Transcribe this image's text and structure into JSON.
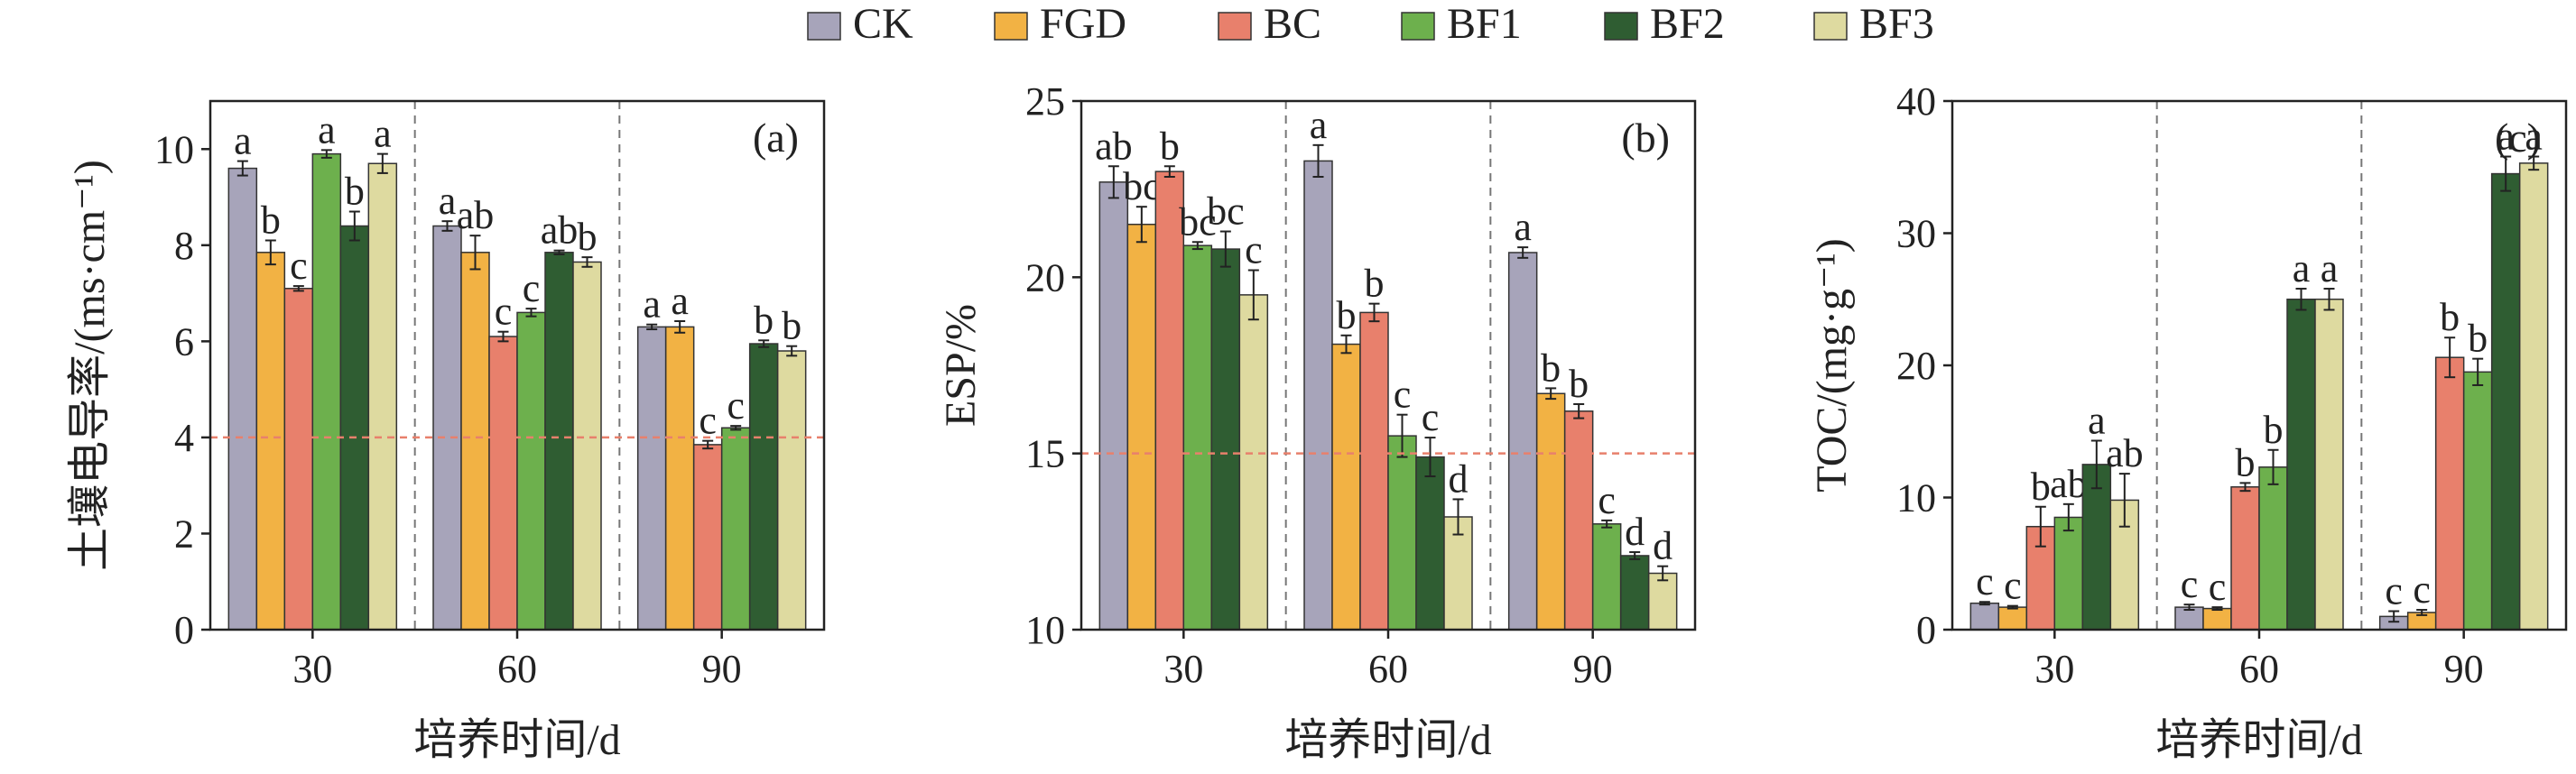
{
  "legend": [
    "CK",
    "FGD",
    "BC",
    "BF1",
    "BF2",
    "BF3"
  ],
  "colors": {
    "CK": "#a7a4ba",
    "FGD": "#f2b244",
    "BC": "#e8806c",
    "BF1": "#6db04d",
    "BF2": "#2f5d32",
    "BF3": "#dedaa0",
    "threshold": "#e8806c",
    "separator": "#777777"
  },
  "chart_data": [
    {
      "type": "bar",
      "panel_label": "(a)",
      "title": "",
      "xlabel": "培养时间/d",
      "ylabel": "土壤电导率/(ms·cm⁻¹)",
      "categories": [
        "30",
        "60",
        "90"
      ],
      "ylim": [
        0,
        11
      ],
      "yticks": [
        0,
        2,
        4,
        6,
        8,
        10
      ],
      "threshold": 4,
      "legend_position": "top",
      "grid": false,
      "series": [
        {
          "name": "CK",
          "values": [
            9.6,
            8.4,
            6.3
          ],
          "errors": [
            0.15,
            0.1,
            0.05
          ],
          "letters": [
            "a",
            "a",
            "a"
          ]
        },
        {
          "name": "FGD",
          "values": [
            7.85,
            7.85,
            6.3
          ],
          "errors": [
            0.25,
            0.35,
            0.12
          ],
          "letters": [
            "b",
            "ab",
            "a"
          ]
        },
        {
          "name": "BC",
          "values": [
            7.1,
            6.1,
            3.85
          ],
          "errors": [
            0.05,
            0.1,
            0.08
          ],
          "letters": [
            "c",
            "c",
            "c"
          ]
        },
        {
          "name": "BF1",
          "values": [
            9.9,
            6.6,
            4.2
          ],
          "errors": [
            0.08,
            0.08,
            0.04
          ],
          "letters": [
            "a",
            "c",
            "c"
          ]
        },
        {
          "name": "BF2",
          "values": [
            8.4,
            7.85,
            5.95
          ],
          "errors": [
            0.3,
            0.04,
            0.07
          ],
          "letters": [
            "b",
            "ab",
            "b"
          ]
        },
        {
          "name": "BF3",
          "values": [
            9.7,
            7.65,
            5.8
          ],
          "errors": [
            0.2,
            0.1,
            0.1
          ],
          "letters": [
            "a",
            "b",
            "b"
          ]
        }
      ]
    },
    {
      "type": "bar",
      "panel_label": "(b)",
      "title": "",
      "xlabel": "培养时间/d",
      "ylabel": "ESP/%",
      "categories": [
        "30",
        "60",
        "90"
      ],
      "ylim": [
        10,
        25
      ],
      "yticks": [
        10,
        15,
        20,
        25
      ],
      "threshold": 15,
      "legend_position": "top",
      "grid": false,
      "series": [
        {
          "name": "CK",
          "values": [
            22.7,
            23.3,
            20.7
          ],
          "errors": [
            0.45,
            0.45,
            0.15
          ],
          "letters": [
            "ab",
            "a",
            "a"
          ]
        },
        {
          "name": "FGD",
          "values": [
            21.5,
            18.1,
            16.7
          ],
          "errors": [
            0.5,
            0.25,
            0.15
          ],
          "letters": [
            "bc",
            "b",
            "b"
          ]
        },
        {
          "name": "BC",
          "values": [
            23.0,
            19.0,
            16.2
          ],
          "errors": [
            0.15,
            0.25,
            0.2
          ],
          "letters": [
            "b",
            "b",
            "b"
          ]
        },
        {
          "name": "BF1",
          "values": [
            20.9,
            15.5,
            13.0
          ],
          "errors": [
            0.1,
            0.6,
            0.1
          ],
          "letters": [
            "bc",
            "c",
            "c"
          ]
        },
        {
          "name": "BF2",
          "values": [
            20.8,
            14.9,
            12.1
          ],
          "errors": [
            0.5,
            0.55,
            0.1
          ],
          "letters": [
            "bc",
            "c",
            "d"
          ]
        },
        {
          "name": "BF3",
          "values": [
            19.5,
            13.2,
            11.6
          ],
          "errors": [
            0.7,
            0.5,
            0.2
          ],
          "letters": [
            "c",
            "d",
            "d"
          ]
        }
      ]
    },
    {
      "type": "bar",
      "panel_label": "(c)",
      "title": "",
      "xlabel": "培养时间/d",
      "ylabel": "TOC/(mg·g⁻¹)",
      "categories": [
        "30",
        "60",
        "90"
      ],
      "ylim": [
        0,
        40
      ],
      "yticks": [
        0,
        10,
        20,
        30,
        40
      ],
      "threshold": null,
      "legend_position": "top",
      "grid": false,
      "series": [
        {
          "name": "CK",
          "values": [
            2.0,
            1.7,
            1.0
          ],
          "errors": [
            0.1,
            0.2,
            0.4
          ],
          "letters": [
            "c",
            "c",
            "c"
          ]
        },
        {
          "name": "FGD",
          "values": [
            1.7,
            1.6,
            1.3
          ],
          "errors": [
            0.1,
            0.1,
            0.2
          ],
          "letters": [
            "c",
            "c",
            "c"
          ]
        },
        {
          "name": "BC",
          "values": [
            7.8,
            10.8,
            20.6
          ],
          "errors": [
            1.5,
            0.3,
            1.5
          ],
          "letters": [
            "b",
            "b",
            "b"
          ]
        },
        {
          "name": "BF1",
          "values": [
            8.5,
            12.3,
            19.5
          ],
          "errors": [
            1.0,
            1.3,
            1.0
          ],
          "letters": [
            "ab",
            "b",
            "b"
          ]
        },
        {
          "name": "BF2",
          "values": [
            12.5,
            25.0,
            34.5
          ],
          "errors": [
            1.8,
            0.8,
            1.3
          ],
          "letters": [
            "a",
            "a",
            "a"
          ]
        },
        {
          "name": "BF3",
          "values": [
            9.8,
            25.0,
            35.3
          ],
          "errors": [
            2.0,
            0.8,
            0.5
          ],
          "letters": [
            "ab",
            "a",
            "a"
          ]
        }
      ]
    }
  ]
}
